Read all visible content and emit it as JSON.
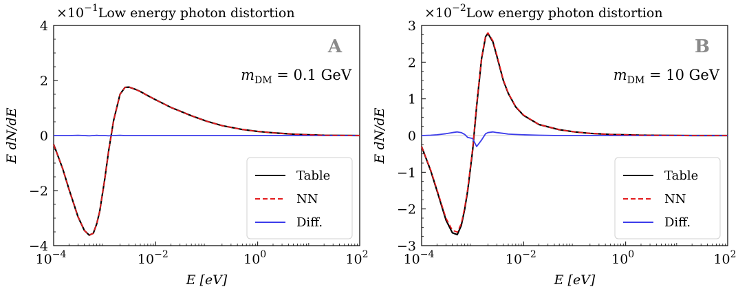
{
  "chart_data": [
    {
      "type": "line",
      "panel": "A",
      "title": "Low energy photon distortion",
      "scale_factor": "×10",
      "scale_exponent": "−1",
      "xlabel": "E [eV]",
      "ylabel": "E dN/dE",
      "x_scale": "log",
      "xlim": [
        0.0001,
        100
      ],
      "ylim": [
        -4,
        4
      ],
      "yticks": [
        -4,
        -2,
        0,
        2,
        4
      ],
      "ytick_labels": [
        "−4",
        "−2",
        "0",
        "2",
        "4"
      ],
      "xticks": [
        0.0001,
        0.01,
        1,
        100
      ],
      "xtick_bases": [
        "10",
        "10",
        "10",
        "10"
      ],
      "xtick_exps": [
        "−4",
        "−2",
        "0",
        "2"
      ],
      "annotation_m": "m",
      "annotation_sub": "DM",
      "annotation_val": " = 0.1 GeV",
      "legend_position": "lower-right",
      "grid": false,
      "x": [
        0.0001,
        0.00015,
        0.0002,
        0.0003,
        0.0004,
        0.0005,
        0.0006,
        0.0007,
        0.0008,
        0.001,
        0.0012,
        0.0015,
        0.002,
        0.0025,
        0.003,
        0.004,
        0.005,
        0.007,
        0.01,
        0.02,
        0.05,
        0.1,
        0.2,
        0.5,
        1,
        2,
        5,
        10,
        20,
        50,
        100
      ],
      "series": [
        {
          "name": "Table",
          "color": "#000000",
          "dash": "",
          "values": [
            -0.32,
            -1.2,
            -1.95,
            -2.95,
            -3.45,
            -3.62,
            -3.55,
            -3.2,
            -2.75,
            -1.6,
            -0.55,
            0.55,
            1.5,
            1.75,
            1.76,
            1.68,
            1.6,
            1.45,
            1.3,
            1.02,
            0.72,
            0.52,
            0.36,
            0.22,
            0.15,
            0.1,
            0.05,
            0.03,
            0.01,
            0.005,
            0.0
          ]
        },
        {
          "name": "NN",
          "color": "#e31a1c",
          "dash": "7,4",
          "values": [
            -0.32,
            -1.2,
            -1.95,
            -2.95,
            -3.45,
            -3.62,
            -3.55,
            -3.2,
            -2.75,
            -1.6,
            -0.55,
            0.55,
            1.5,
            1.75,
            1.76,
            1.68,
            1.6,
            1.45,
            1.3,
            1.02,
            0.72,
            0.52,
            0.36,
            0.22,
            0.15,
            0.1,
            0.05,
            0.03,
            0.01,
            0.005,
            0.0
          ]
        },
        {
          "name": "Diff.",
          "color": "#3b3bea",
          "dash": "",
          "values": [
            0.0,
            0.0,
            0.0,
            0.01,
            0.0,
            -0.01,
            0.0,
            0.01,
            0.0,
            0.0,
            -0.01,
            0.0,
            0.01,
            0.0,
            0.0,
            0.0,
            0.0,
            0.0,
            0.0,
            0.0,
            0.0,
            0.0,
            0.0,
            0.0,
            0.0,
            0.0,
            0.0,
            0.0,
            0.0,
            0.0,
            0.0
          ]
        }
      ]
    },
    {
      "type": "line",
      "panel": "B",
      "title": "Low energy photon distortion",
      "scale_factor": "×10",
      "scale_exponent": "−2",
      "xlabel": "E [eV]",
      "ylabel": "E dN/dE",
      "x_scale": "log",
      "xlim": [
        0.0001,
        100
      ],
      "ylim": [
        -3,
        3
      ],
      "yticks": [
        -3,
        -2,
        -1,
        0,
        1,
        2,
        3
      ],
      "ytick_labels": [
        "−3",
        "−2",
        "−1",
        "0",
        "1",
        "2",
        "3"
      ],
      "xticks": [
        0.0001,
        0.01,
        1,
        100
      ],
      "xtick_bases": [
        "10",
        "10",
        "10",
        "10"
      ],
      "xtick_exps": [
        "−4",
        "−2",
        "0",
        "2"
      ],
      "annotation_m": "m",
      "annotation_sub": "DM",
      "annotation_val": " = 10 GeV",
      "legend_position": "lower-right",
      "grid": false,
      "x": [
        0.0001,
        0.00015,
        0.0002,
        0.0003,
        0.0004,
        0.0005,
        0.0006,
        0.0007,
        0.0008,
        0.001,
        0.0012,
        0.0015,
        0.0018,
        0.002,
        0.0025,
        0.003,
        0.004,
        0.005,
        0.007,
        0.01,
        0.02,
        0.05,
        0.1,
        0.2,
        0.5,
        1,
        2,
        5,
        10,
        20,
        50,
        100
      ],
      "series": [
        {
          "name": "Table",
          "color": "#000000",
          "dash": "",
          "values": [
            -0.3,
            -0.95,
            -1.5,
            -2.3,
            -2.65,
            -2.7,
            -2.45,
            -2.0,
            -1.5,
            -0.4,
            0.8,
            2.1,
            2.7,
            2.78,
            2.55,
            2.15,
            1.5,
            1.15,
            0.78,
            0.55,
            0.3,
            0.16,
            0.1,
            0.06,
            0.03,
            0.02,
            0.01,
            0.005,
            0.003,
            0.0,
            0.0,
            0.0
          ]
        },
        {
          "name": "NN",
          "color": "#e31a1c",
          "dash": "7,4",
          "values": [
            -0.3,
            -0.93,
            -1.47,
            -2.25,
            -2.58,
            -2.63,
            -2.4,
            -1.95,
            -1.45,
            -0.35,
            0.85,
            2.12,
            2.72,
            2.8,
            2.58,
            2.18,
            1.52,
            1.16,
            0.79,
            0.56,
            0.3,
            0.16,
            0.1,
            0.06,
            0.03,
            0.02,
            0.01,
            0.005,
            0.003,
            0.0,
            0.0,
            0.0
          ]
        },
        {
          "name": "Diff.",
          "color": "#3b3bea",
          "dash": "",
          "values": [
            0.0,
            0.01,
            0.02,
            0.05,
            0.08,
            0.1,
            0.08,
            0.03,
            -0.05,
            -0.08,
            -0.3,
            -0.12,
            0.05,
            0.08,
            0.1,
            0.08,
            0.06,
            0.04,
            0.03,
            0.02,
            0.01,
            0.0,
            0.0,
            0.0,
            0.0,
            0.0,
            0.0,
            0.0,
            0.0,
            0.0,
            0.0,
            0.0
          ]
        }
      ]
    }
  ]
}
